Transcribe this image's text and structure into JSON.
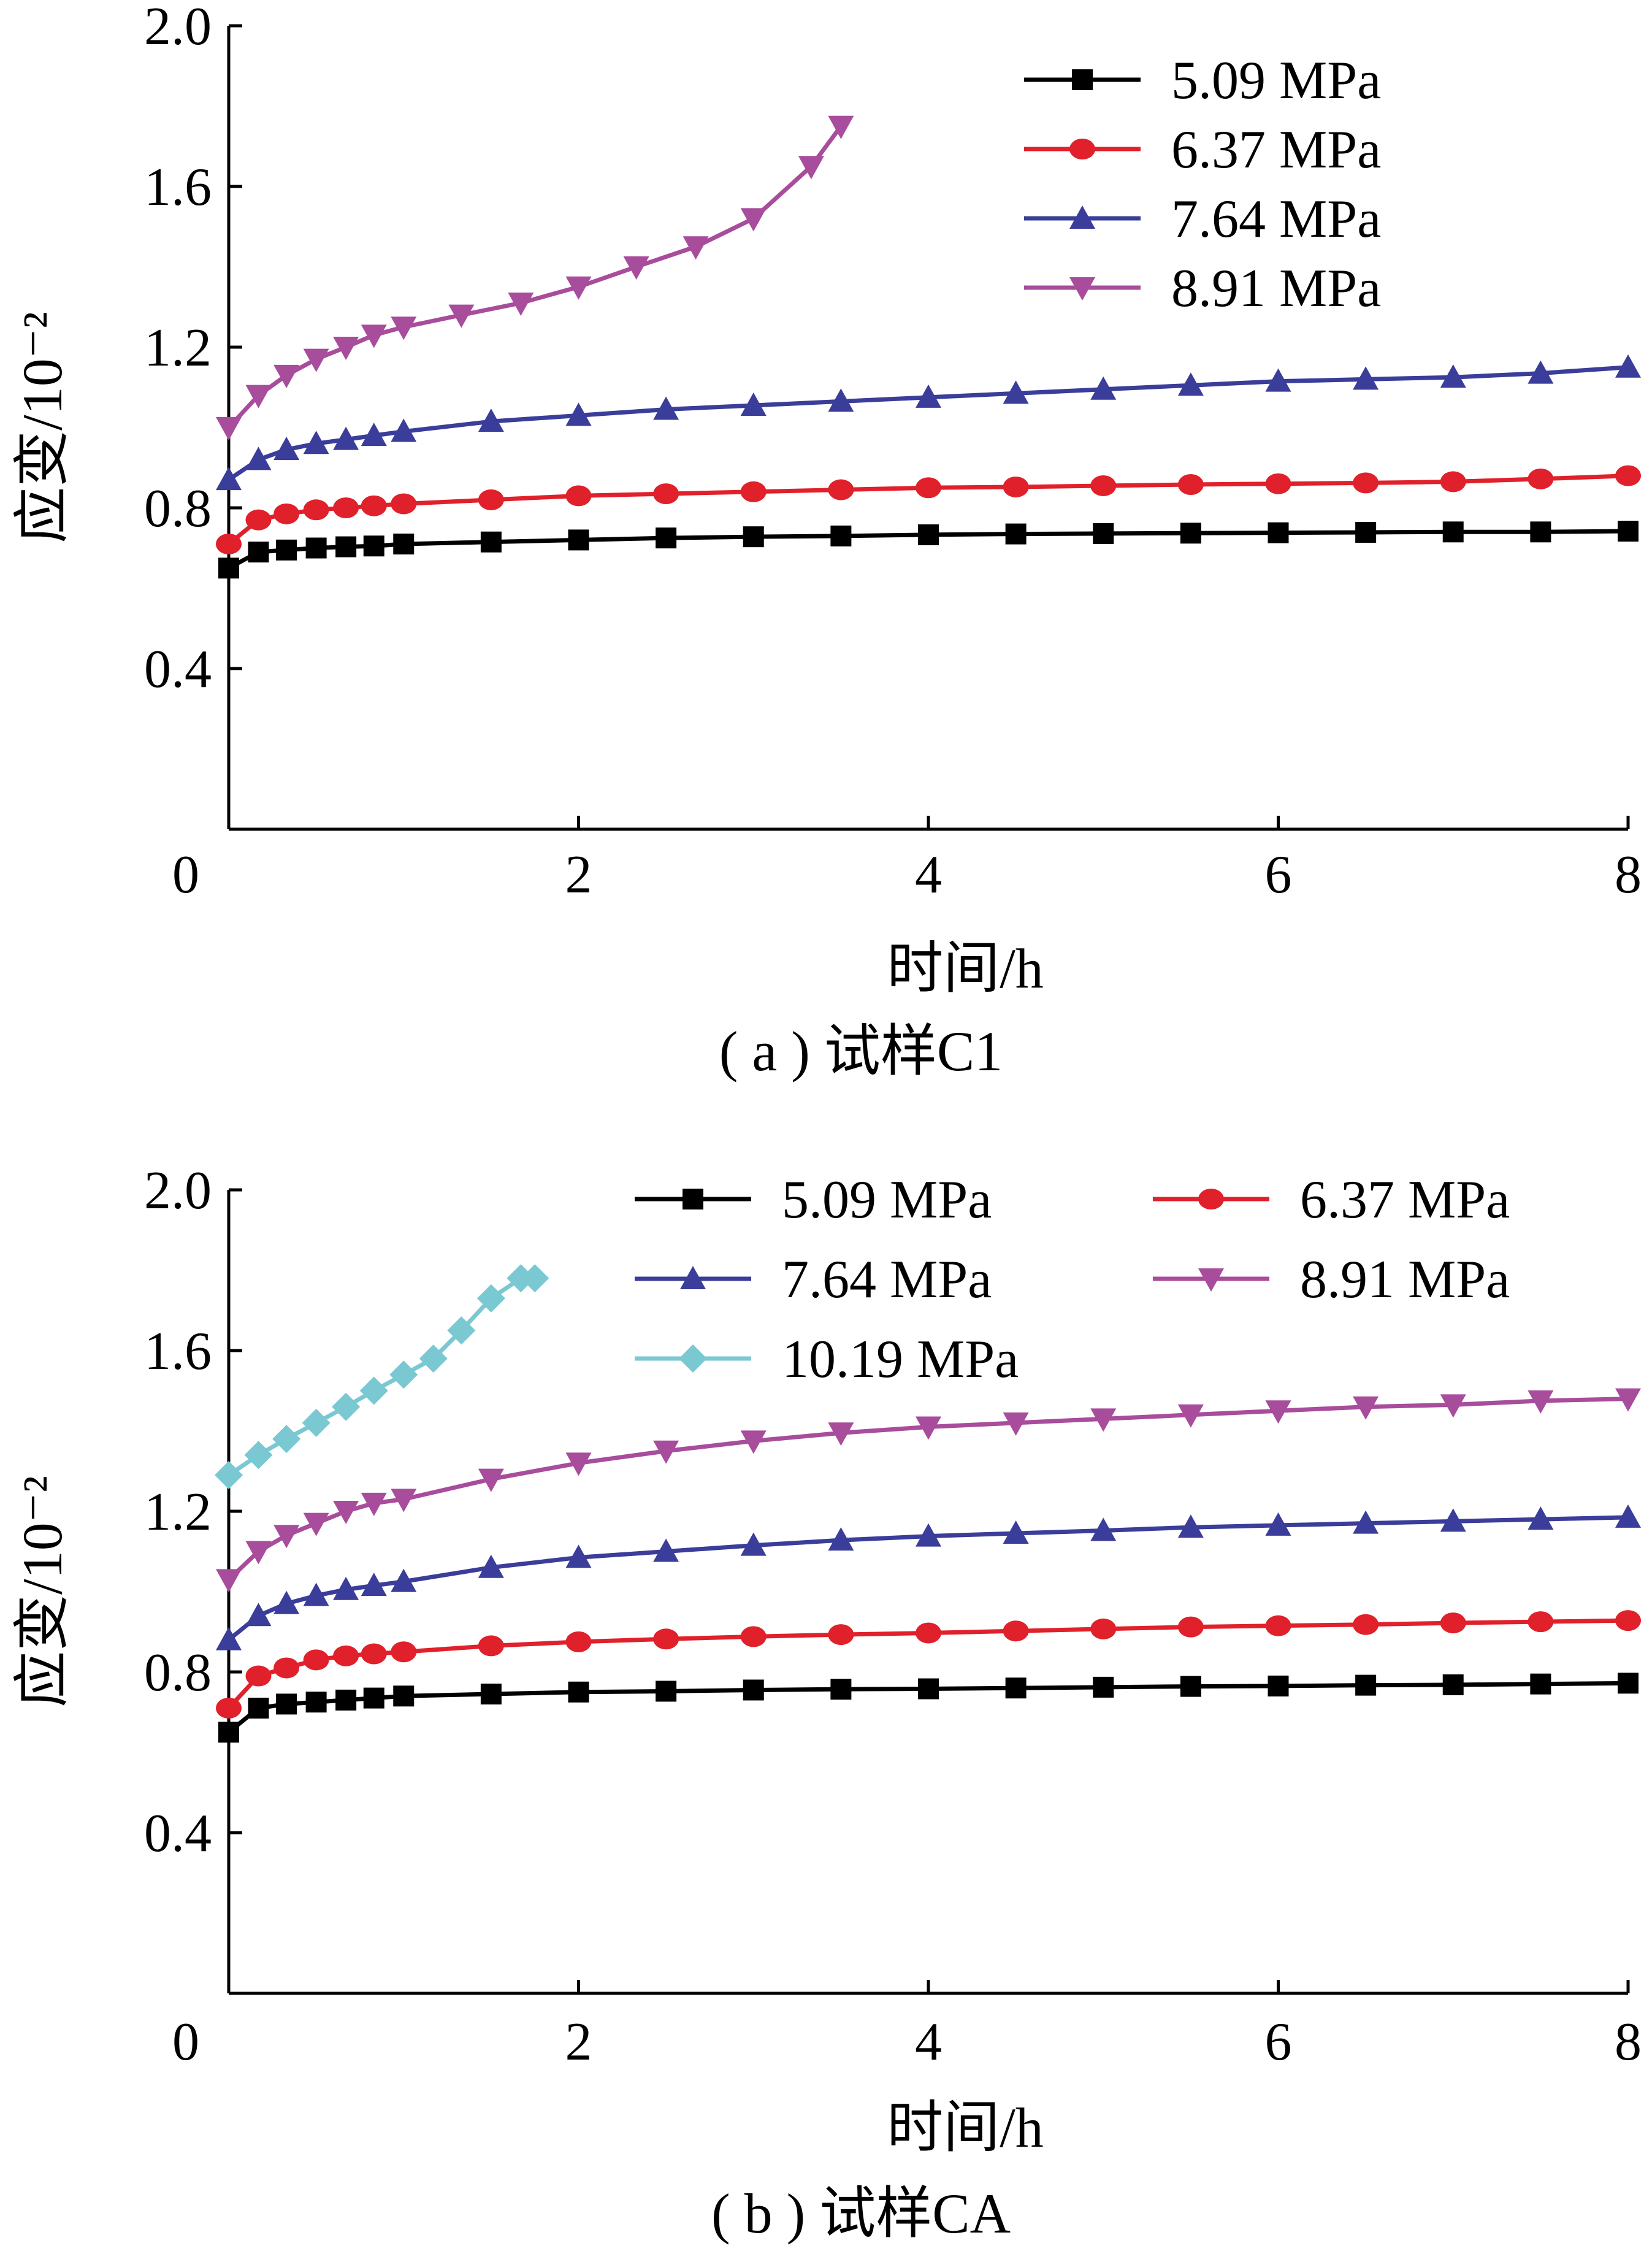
{
  "chart_data": [
    {
      "type": "line",
      "caption": "( a ) 试样C1",
      "xlabel": "时间/h",
      "ylabel": "应变/10⁻²",
      "xlim": [
        0,
        8
      ],
      "ylim": [
        0,
        2.0
      ],
      "x_ticks": [
        "0",
        "2",
        "4",
        "6",
        "8"
      ],
      "y_ticks": [
        "0.4",
        "0.8",
        "1.2",
        "1.6",
        "2.0"
      ],
      "legend": {
        "placement": "top-right",
        "columns": 1
      },
      "series": [
        {
          "name": "5.09 MPa",
          "color": "#000000",
          "marker": "square",
          "x": [
            0,
            0.17,
            0.33,
            0.5,
            0.67,
            0.83,
            1,
            1.5,
            2,
            2.5,
            3,
            3.5,
            4,
            4.5,
            5,
            5.5,
            6,
            6.5,
            7,
            7.5,
            8
          ],
          "y": [
            0.65,
            0.69,
            0.695,
            0.7,
            0.703,
            0.705,
            0.71,
            0.715,
            0.72,
            0.725,
            0.728,
            0.73,
            0.733,
            0.735,
            0.736,
            0.737,
            0.738,
            0.739,
            0.74,
            0.74,
            0.742
          ]
        },
        {
          "name": "6.37 MPa",
          "color": "#e0202a",
          "marker": "circle",
          "x": [
            0,
            0.17,
            0.33,
            0.5,
            0.67,
            0.83,
            1,
            1.5,
            2,
            2.5,
            3,
            3.5,
            4,
            4.5,
            5,
            5.5,
            6,
            6.5,
            7,
            7.5,
            8
          ],
          "y": [
            0.71,
            0.77,
            0.785,
            0.795,
            0.8,
            0.805,
            0.81,
            0.82,
            0.83,
            0.835,
            0.84,
            0.845,
            0.85,
            0.852,
            0.855,
            0.858,
            0.86,
            0.862,
            0.865,
            0.872,
            0.88
          ]
        },
        {
          "name": "7.64 MPa",
          "color": "#3a3d9a",
          "marker": "triangle-up",
          "x": [
            0,
            0.17,
            0.33,
            0.5,
            0.67,
            0.83,
            1,
            1.5,
            2,
            2.5,
            3,
            3.5,
            4,
            4.5,
            5,
            5.5,
            6,
            6.5,
            7,
            7.5,
            8
          ],
          "y": [
            0.87,
            0.92,
            0.945,
            0.96,
            0.97,
            0.98,
            0.99,
            1.015,
            1.03,
            1.045,
            1.055,
            1.065,
            1.075,
            1.085,
            1.095,
            1.105,
            1.115,
            1.12,
            1.125,
            1.135,
            1.15
          ]
        },
        {
          "name": "8.91 MPa",
          "color": "#a84c9c",
          "marker": "triangle-down",
          "x": [
            0,
            0.17,
            0.33,
            0.5,
            0.67,
            0.83,
            1.0,
            1.33,
            1.67,
            2.0,
            2.33,
            2.67,
            3.0,
            3.33,
            3.5
          ],
          "y": [
            1.0,
            1.08,
            1.13,
            1.17,
            1.2,
            1.23,
            1.25,
            1.28,
            1.31,
            1.35,
            1.4,
            1.45,
            1.52,
            1.65,
            1.75
          ]
        }
      ]
    },
    {
      "type": "line",
      "caption": "( b ) 试样CA",
      "xlabel": "时间/h",
      "ylabel": "应变/10⁻²",
      "xlim": [
        0,
        8
      ],
      "ylim": [
        0,
        2.0
      ],
      "x_ticks": [
        "0",
        "2",
        "4",
        "6",
        "8"
      ],
      "y_ticks": [
        "0.4",
        "0.8",
        "1.2",
        "1.6",
        "2.0"
      ],
      "legend": {
        "placement": "top-right",
        "columns": 2
      },
      "series": [
        {
          "name": "5.09 MPa",
          "color": "#000000",
          "marker": "square",
          "x": [
            0,
            0.17,
            0.33,
            0.5,
            0.67,
            0.83,
            1,
            1.5,
            2,
            2.5,
            3,
            3.5,
            4,
            4.5,
            5,
            5.5,
            6,
            6.5,
            7,
            7.5,
            8
          ],
          "y": [
            0.65,
            0.71,
            0.72,
            0.725,
            0.73,
            0.735,
            0.74,
            0.745,
            0.75,
            0.752,
            0.755,
            0.757,
            0.758,
            0.76,
            0.762,
            0.764,
            0.765,
            0.767,
            0.768,
            0.77,
            0.772
          ]
        },
        {
          "name": "6.37 MPa",
          "color": "#e0202a",
          "marker": "circle",
          "x": [
            0,
            0.17,
            0.33,
            0.5,
            0.67,
            0.83,
            1,
            1.5,
            2,
            2.5,
            3,
            3.5,
            4,
            4.5,
            5,
            5.5,
            6,
            6.5,
            7,
            7.5,
            8
          ],
          "y": [
            0.71,
            0.79,
            0.81,
            0.83,
            0.84,
            0.845,
            0.85,
            0.865,
            0.875,
            0.882,
            0.888,
            0.893,
            0.897,
            0.902,
            0.907,
            0.912,
            0.915,
            0.918,
            0.922,
            0.925,
            0.928
          ]
        },
        {
          "name": "7.64 MPa",
          "color": "#3a3d9a",
          "marker": "triangle-up",
          "x": [
            0,
            0.17,
            0.33,
            0.5,
            0.67,
            0.83,
            1,
            1.5,
            2,
            2.5,
            3,
            3.5,
            4,
            4.5,
            5,
            5.5,
            6,
            6.5,
            7,
            7.5,
            8
          ],
          "y": [
            0.88,
            0.94,
            0.97,
            0.99,
            1.005,
            1.015,
            1.025,
            1.06,
            1.085,
            1.1,
            1.115,
            1.128,
            1.138,
            1.145,
            1.152,
            1.16,
            1.165,
            1.17,
            1.175,
            1.18,
            1.185
          ]
        },
        {
          "name": "8.91 MPa",
          "color": "#a84c9c",
          "marker": "triangle-down",
          "x": [
            0,
            0.17,
            0.33,
            0.5,
            0.67,
            0.83,
            1,
            1.5,
            2,
            2.5,
            3,
            3.5,
            4,
            4.5,
            5,
            5.5,
            6,
            6.5,
            7,
            7.5,
            8
          ],
          "y": [
            1.03,
            1.1,
            1.14,
            1.17,
            1.2,
            1.22,
            1.23,
            1.28,
            1.32,
            1.35,
            1.375,
            1.395,
            1.41,
            1.42,
            1.43,
            1.44,
            1.45,
            1.46,
            1.465,
            1.475,
            1.48
          ]
        },
        {
          "name": "10.19 MPa",
          "color": "#7ac8d2",
          "marker": "diamond",
          "x": [
            0,
            0.17,
            0.33,
            0.5,
            0.67,
            0.83,
            1.0,
            1.17,
            1.33,
            1.5,
            1.67,
            1.75
          ],
          "y": [
            1.29,
            1.34,
            1.38,
            1.42,
            1.46,
            1.5,
            1.54,
            1.58,
            1.65,
            1.73,
            1.78,
            1.78
          ]
        }
      ]
    }
  ]
}
